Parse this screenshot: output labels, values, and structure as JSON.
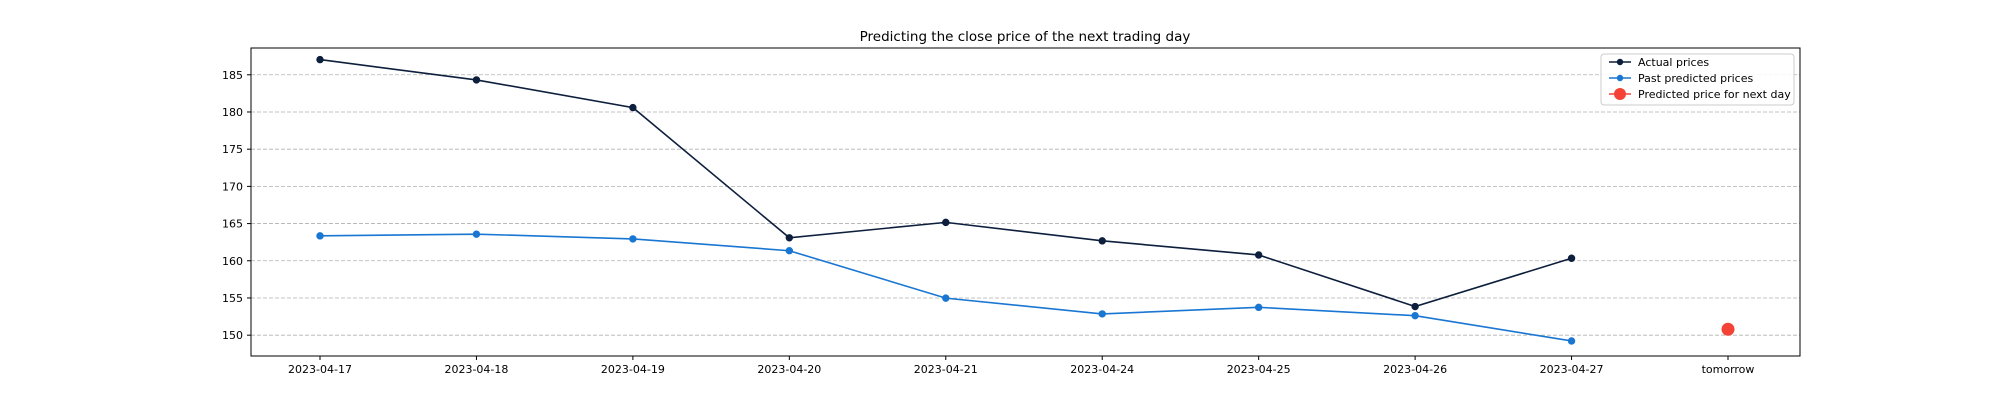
{
  "chart_data": {
    "type": "line",
    "title": "Predicting the close price of the next trading day",
    "xlabel": "",
    "ylabel": "",
    "categories": [
      "2023-04-17",
      "2023-04-18",
      "2023-04-19",
      "2023-04-20",
      "2023-04-21",
      "2023-04-24",
      "2023-04-25",
      "2023-04-26",
      "2023-04-27",
      "tomorrow"
    ],
    "y_ticks": [
      150,
      155,
      160,
      165,
      170,
      175,
      180,
      185
    ],
    "ylim": [
      147.2,
      188.6
    ],
    "grid": {
      "y": true,
      "x": false,
      "style": "dashed"
    },
    "legend": {
      "position": "top-right"
    },
    "series": [
      {
        "name": "Actual prices",
        "color": "#0d1f3c",
        "marker": "circle",
        "values": [
          187.04,
          184.31,
          180.59,
          163.09,
          165.16,
          162.68,
          160.78,
          153.85,
          160.34,
          null
        ]
      },
      {
        "name": "Past predicted prices",
        "color": "#1976d2",
        "marker": "circle",
        "values": [
          163.35,
          163.58,
          162.94,
          161.35,
          154.98,
          152.86,
          153.74,
          152.62,
          149.22,
          null
        ]
      },
      {
        "name": "Predicted price for next day",
        "color": "#f44336",
        "marker": "large-circle",
        "values": [
          null,
          null,
          null,
          null,
          null,
          null,
          null,
          null,
          null,
          150.8
        ]
      }
    ]
  }
}
